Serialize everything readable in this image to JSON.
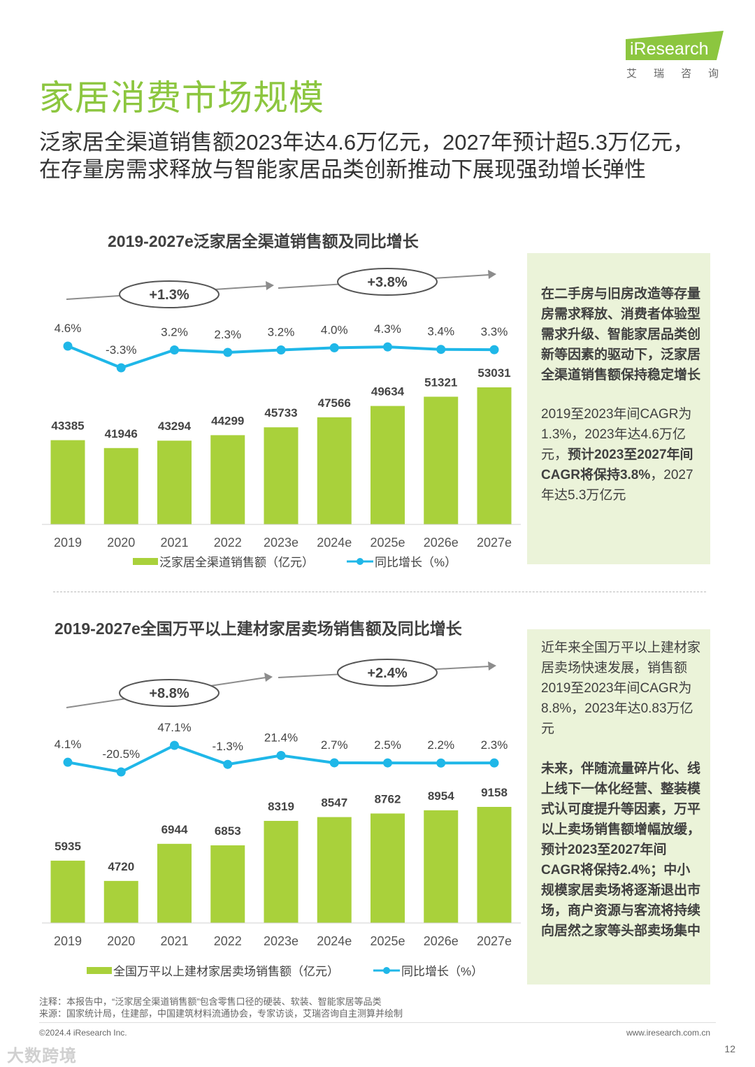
{
  "header": {
    "brand_logo": "iResearch",
    "brand_cn": "艾瑞咨询",
    "title": "家居消费市场规模",
    "subtitle_line1": "泛家居全渠道销售额2023年达4.6万亿元，2027年预计超5.3万亿元，",
    "subtitle_line2": "在存量房需求释放与智能家居品类创新推动下展现强劲增长弹性"
  },
  "colors": {
    "bar": "#a9d13b",
    "line": "#1fb7e8",
    "title": "#8cc63f",
    "panel": "#ebf3d9"
  },
  "chart_data": [
    {
      "type": "bar",
      "title": "2019-2027e泛家居全渠道销售额及同比增长",
      "categories": [
        "2019",
        "2020",
        "2021",
        "2022",
        "2023e",
        "2024e",
        "2025e",
        "2026e",
        "2027e"
      ],
      "series": [
        {
          "name": "泛家居全渠道销售额（亿元）",
          "type": "bar",
          "values": [
            43385,
            41946,
            43294,
            44299,
            45733,
            47566,
            49634,
            51321,
            53031
          ]
        },
        {
          "name": "同比增长（%）",
          "type": "line",
          "values": [
            4.6,
            -3.3,
            3.2,
            2.3,
            3.2,
            4.0,
            4.3,
            3.4,
            3.3
          ],
          "labels": [
            "4.6%",
            "-3.3%",
            "3.2%",
            "2.3%",
            "3.2%",
            "4.0%",
            "4.3%",
            "3.4%",
            "3.3%"
          ]
        }
      ],
      "legend": [
        "泛家居全渠道销售额（亿元）",
        "同比增长（%）"
      ],
      "cagr": [
        "+1.3%",
        "+3.8%"
      ]
    },
    {
      "type": "bar",
      "title": "2019-2027e全国万平以上建材家居卖场销售额及同比增长",
      "categories": [
        "2019",
        "2020",
        "2021",
        "2022",
        "2023e",
        "2024e",
        "2025e",
        "2026e",
        "2027e"
      ],
      "series": [
        {
          "name": "全国万平以上建材家居卖场销售额（亿元）",
          "type": "bar",
          "values": [
            5935,
            4720,
            6944,
            6853,
            8319,
            8547,
            8762,
            8954,
            9158
          ]
        },
        {
          "name": "同比增长（%）",
          "type": "line",
          "values": [
            4.1,
            -20.5,
            47.1,
            -1.3,
            21.4,
            2.7,
            2.5,
            2.2,
            2.3
          ],
          "labels": [
            "4.1%",
            "-20.5%",
            "47.1%",
            "-1.3%",
            "21.4%",
            "2.7%",
            "2.5%",
            "2.2%",
            "2.3%"
          ]
        }
      ],
      "legend": [
        "全国万平以上建材家居卖场销售额（亿元）",
        "同比增长（%）"
      ],
      "cagr": [
        "+8.8%",
        "+2.4%"
      ]
    }
  ],
  "panel1": {
    "bold_text": "在二手房与旧房改造等存量房需求释放、消费者体验型需求升级、智能家居品类创新等因素的驱动下，泛家居全渠道销售额保持稳定增长",
    "cagr_plain1": "2019至2023年间CAGR为1.3%，2023年达4.6万亿元，",
    "cagr_bold": "预计2023至2027年间CAGR将保持3.8%",
    "cagr_plain2": "，2027年达5.3万亿元"
  },
  "panel2": {
    "text1": "近年来全国万平以上建材家居卖场快速发展，销售额2019至2023年间CAGR为8.8%，2023年达0.83万亿元",
    "bold_text": "未来，伴随流量碎片化、线上线下一体化经营、整装模式认可度提升等因素，万平以上卖场销售额增幅放缓，预计2023至2027年间CAGR将保持2.4%；中小规模家居卖场将逐渐退出市场，商户资源与客流将持续向居然之家等头部卖场集中"
  },
  "footer": {
    "note": "注释：本报告中，“泛家居全渠道销售额”包含零售口径的硬装、软装、智能家居等品类",
    "source": "来源：国家统计局，住建部，中国建筑材料流通协会，专家访谈，艾瑞咨询自主测算并绘制",
    "copyright": "©2024.4 iResearch Inc.",
    "website": "www.iresearch.com.cn",
    "page": "12",
    "watermark": "大数跨境"
  }
}
